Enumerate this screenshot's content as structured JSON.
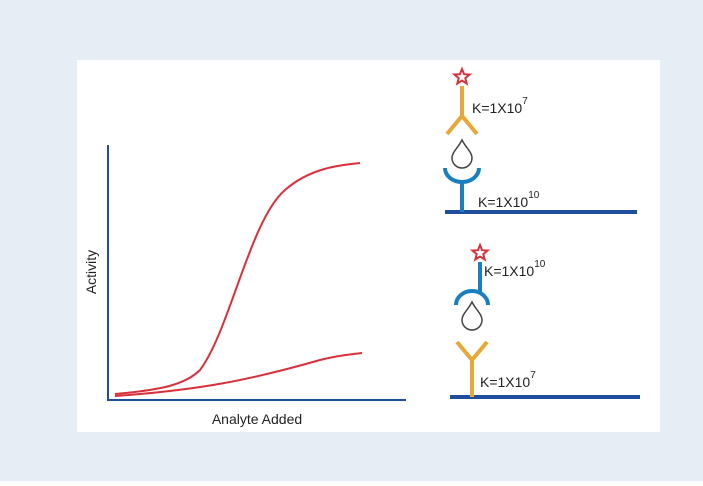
{
  "plot": {
    "y_axis_label": "Activity",
    "x_axis_label": "Analyte Added"
  },
  "diagrams": [
    {
      "labels": [
        {
          "base": "K=1X10",
          "exponent": "7"
        },
        {
          "base": "K=1X10",
          "exponent": "10"
        }
      ]
    },
    {
      "labels": [
        {
          "base": "K=1X10",
          "exponent": "10"
        },
        {
          "base": "K=1X10",
          "exponent": "7"
        }
      ]
    }
  ]
}
